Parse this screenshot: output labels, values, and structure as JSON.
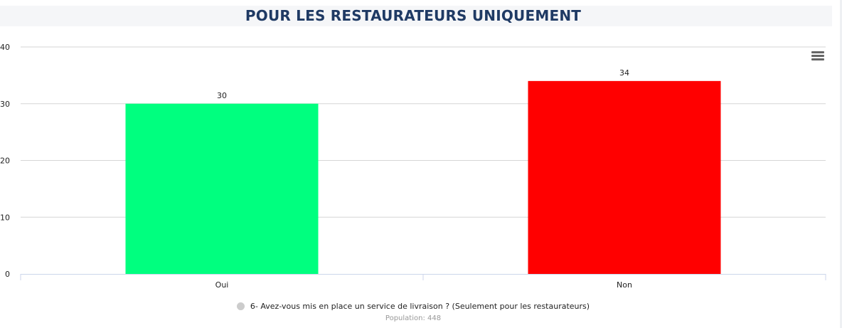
{
  "title": "POUR LES RESTAURATEURS UNIQUEMENT",
  "legend": {
    "label": "6- Avez-vous mis en place un service de livraison ? (Seulement pour les restaurateurs)",
    "dot_color": "#cccccc"
  },
  "population_text": "Population: 448",
  "menu_icon": "hamburger-menu-icon",
  "chart_data": {
    "type": "bar",
    "categories": [
      "Oui",
      "Non"
    ],
    "series": [
      {
        "values": [
          30,
          34
        ],
        "colors": [
          "#00ff7f",
          "#ff0000"
        ]
      }
    ],
    "ylim": [
      0,
      40
    ],
    "yticks": [
      0,
      10,
      20,
      30,
      40
    ],
    "grid": true,
    "data_labels": true
  }
}
